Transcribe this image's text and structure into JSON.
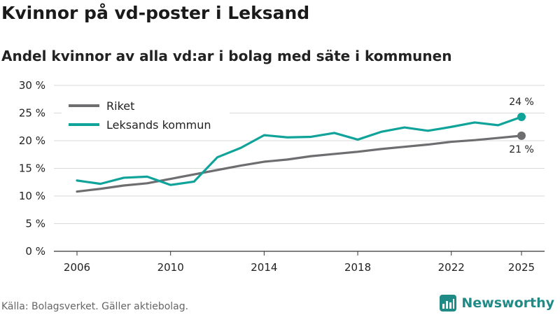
{
  "header": {
    "title": "Kvinnor på vd-poster i Leksand",
    "subtitle": "Andel kvinnor av alla vd:ar i bolag med säte i kommunen"
  },
  "footer": {
    "source": "Källa: Bolagsverket. Gäller aktiebolag.",
    "brand": "Newsworthy",
    "brand_color": "#1f8a86"
  },
  "chart_data": {
    "type": "line",
    "title": "Kvinnor på vd-poster i Leksand",
    "xlabel": "",
    "ylabel": "",
    "x": [
      2006,
      2007,
      2008,
      2009,
      2010,
      2011,
      2012,
      2013,
      2014,
      2015,
      2016,
      2017,
      2018,
      2019,
      2020,
      2021,
      2022,
      2023,
      2024,
      2025
    ],
    "xlim": [
      2006,
      2025
    ],
    "ylim": [
      0,
      30
    ],
    "x_ticks": [
      2006,
      2010,
      2014,
      2018,
      2022,
      2025
    ],
    "y_ticks": [
      0,
      5,
      10,
      15,
      20,
      25,
      30
    ],
    "y_tick_labels": [
      "0 %",
      "5 %",
      "10 %",
      "15 %",
      "20 %",
      "25 %",
      "30 %"
    ],
    "grid": true,
    "legend": "top-left",
    "series": [
      {
        "name": "Riket",
        "color": "#6e6d70",
        "values": [
          10.8,
          11.3,
          11.9,
          12.3,
          13.1,
          13.9,
          14.7,
          15.5,
          16.2,
          16.6,
          17.2,
          17.6,
          18.0,
          18.5,
          18.9,
          19.3,
          19.8,
          20.1,
          20.5,
          20.9
        ],
        "end_label": "21 %"
      },
      {
        "name": "Leksands kommun",
        "color": "#0fa39a",
        "values": [
          12.8,
          12.2,
          13.3,
          13.5,
          12.0,
          12.6,
          17.0,
          18.7,
          21.0,
          20.6,
          20.7,
          21.4,
          20.2,
          21.6,
          22.4,
          21.8,
          22.5,
          23.3,
          22.8,
          24.3
        ],
        "end_label": "24 %"
      }
    ]
  }
}
